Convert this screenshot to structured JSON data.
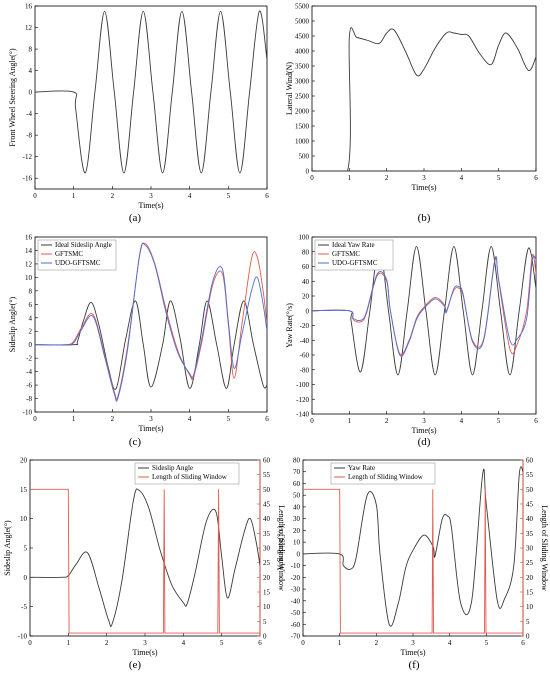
{
  "colors": {
    "black": "#3a3a3a",
    "red": "#e05a4e",
    "blue": "#4a6fd6",
    "axis_red": "#d24b3e"
  },
  "chart_data": [
    {
      "id": "a",
      "type": "line",
      "panel_label": "(a)",
      "xlabel": "Time(s)",
      "ylabel": "Front Wheel Steering Angle(°)",
      "xlim": [
        0,
        6
      ],
      "ylim": [
        -18,
        16
      ],
      "xticks": [
        0,
        1,
        2,
        3,
        4,
        5,
        6
      ],
      "yticks": [
        -16,
        -12,
        -8,
        -4,
        0,
        4,
        8,
        12,
        16
      ],
      "legend": [],
      "series": [
        {
          "color": "black",
          "x": [
            0,
            1,
            1.05,
            1.3,
            1.55,
            1.8,
            2.05,
            2.3,
            2.55,
            2.8,
            3.05,
            3.3,
            3.55,
            3.8,
            4.05,
            4.3,
            4.55,
            4.8,
            5.05,
            5.3,
            5.55,
            5.8,
            6.0
          ],
          "y": [
            0,
            0,
            -3,
            -15,
            0,
            15,
            0,
            -15,
            0,
            15,
            0,
            -15,
            0,
            15,
            0,
            -15,
            0,
            15,
            0,
            -15,
            0,
            15,
            6
          ]
        }
      ]
    },
    {
      "id": "b",
      "type": "line",
      "panel_label": "(b)",
      "xlabel": "Time(s)",
      "ylabel": "Lateral Wind(N)",
      "xlim": [
        0,
        6
      ],
      "ylim": [
        0,
        5500
      ],
      "xticks": [
        0,
        1,
        2,
        3,
        4,
        5,
        6
      ],
      "yticks": [
        0,
        500,
        1000,
        1500,
        2000,
        2500,
        3000,
        3500,
        4000,
        4500,
        5000,
        5500
      ],
      "legend": [],
      "series": [
        {
          "color": "black",
          "x": [
            0,
            0.95,
            1.0,
            1.2,
            1.5,
            1.8,
            2.0,
            2.2,
            2.5,
            2.8,
            3.0,
            3.3,
            3.6,
            3.8,
            4.0,
            4.2,
            4.5,
            4.8,
            5.0,
            5.2,
            5.5,
            5.8,
            6.0
          ],
          "y": [
            0,
            0,
            4450,
            4450,
            4350,
            4250,
            4600,
            4700,
            4000,
            3200,
            3400,
            4100,
            4600,
            4600,
            4550,
            4500,
            3900,
            3550,
            4200,
            4600,
            4100,
            3350,
            3800
          ]
        }
      ]
    },
    {
      "id": "c",
      "type": "line",
      "panel_label": "(c)",
      "xlabel": "Time(s)",
      "ylabel": "Sideslip Angle(°)",
      "xlim": [
        0,
        6
      ],
      "ylim": [
        -10,
        16
      ],
      "xticks": [
        0,
        1,
        2,
        3,
        4,
        5,
        6
      ],
      "yticks": [
        -10,
        -8,
        -6,
        -4,
        -2,
        0,
        2,
        4,
        6,
        8,
        10,
        12,
        14,
        16
      ],
      "legend": [
        "Ideal Sideslip Angle",
        "GFTSMC",
        "UDO-GFTSMC"
      ],
      "series": [
        {
          "name": "Ideal Sideslip Angle",
          "color": "black",
          "x": [
            0,
            1,
            1.1,
            1.25,
            1.45,
            1.65,
            1.9,
            2.1,
            2.35,
            2.6,
            2.8,
            3.0,
            3.3,
            3.5,
            3.75,
            4.0,
            4.25,
            4.45,
            4.7,
            4.95,
            5.15,
            5.4,
            5.65,
            5.9,
            6.0
          ],
          "y": [
            0,
            0,
            0.5,
            3.5,
            6.3,
            3,
            -3.5,
            -6.5,
            1,
            6.5,
            0,
            -6.3,
            0,
            6.5,
            1,
            -6.5,
            0,
            6.5,
            0,
            -6.5,
            0,
            6.5,
            0,
            -6,
            -6
          ]
        },
        {
          "name": "GFTSMC",
          "color": "red",
          "x": [
            0,
            0.8,
            1.0,
            1.2,
            1.5,
            1.8,
            2.05,
            2.15,
            2.4,
            2.7,
            2.85,
            3.1,
            3.4,
            3.7,
            4.0,
            4.1,
            4.3,
            4.6,
            4.85,
            5.0,
            5.15,
            5.35,
            5.6,
            5.75,
            5.9,
            6.0
          ],
          "y": [
            0,
            0,
            0.5,
            2.5,
            4.5,
            -1.5,
            -7,
            -7.5,
            0,
            13,
            15,
            12,
            5,
            -1,
            -4.5,
            -4.8,
            0,
            9,
            10.5,
            3,
            -5,
            3,
            12.8,
            13,
            8,
            3
          ]
        },
        {
          "name": "UDO-GFTSMC",
          "color": "blue",
          "x": [
            0,
            0.8,
            1.0,
            1.2,
            1.5,
            1.8,
            2.05,
            2.15,
            2.4,
            2.7,
            2.85,
            3.1,
            3.4,
            3.7,
            4.0,
            4.1,
            4.3,
            4.6,
            4.85,
            5.0,
            5.15,
            5.35,
            5.6,
            5.75,
            5.9,
            6.0
          ],
          "y": [
            0,
            0,
            0.3,
            2.2,
            4.2,
            -1.8,
            -7.3,
            -7.8,
            -0.5,
            13.2,
            14.8,
            11.8,
            4.5,
            -1.3,
            -4.3,
            -4.5,
            0.5,
            9.5,
            11.2,
            3.5,
            -3.5,
            1.5,
            8,
            10,
            6,
            2
          ]
        }
      ]
    },
    {
      "id": "d",
      "type": "line",
      "panel_label": "(d)",
      "xlabel": "Time(s)",
      "ylabel": "Yaw Rate(°/s)",
      "xlim": [
        0,
        6
      ],
      "ylim": [
        -140,
        100
      ],
      "xticks": [
        0,
        1,
        2,
        3,
        4,
        5,
        6
      ],
      "yticks": [
        -140,
        -120,
        -100,
        -80,
        -60,
        -40,
        -20,
        0,
        20,
        40,
        60,
        80,
        100
      ],
      "legend": [
        "Ideal Yaw Rate",
        "GFTSMC",
        "UDO-GFTSMC"
      ],
      "series": [
        {
          "name": "Ideal Yaw Rate",
          "color": "black",
          "x": [
            0,
            1,
            1.05,
            1.3,
            1.55,
            1.8,
            2.05,
            2.3,
            2.55,
            2.8,
            3.05,
            3.3,
            3.55,
            3.8,
            4.05,
            4.3,
            4.55,
            4.8,
            5.05,
            5.3,
            5.55,
            5.8,
            6.0
          ],
          "y": [
            0,
            0,
            -15,
            -83,
            0,
            87,
            0,
            -87,
            0,
            87,
            0,
            -87,
            0,
            87,
            0,
            -87,
            0,
            87,
            0,
            -87,
            0,
            85,
            30
          ]
        },
        {
          "name": "GFTSMC",
          "color": "red",
          "x": [
            0,
            1.0,
            1.1,
            1.3,
            1.45,
            1.75,
            2.0,
            2.1,
            2.35,
            2.6,
            2.8,
            3.0,
            3.3,
            3.55,
            3.6,
            3.8,
            3.95,
            4.05,
            4.3,
            4.6,
            4.9,
            5.0,
            5.3,
            5.5,
            5.75,
            5.9,
            6.0
          ],
          "y": [
            0,
            0,
            -12,
            -15,
            -5,
            48,
            40,
            0,
            -58,
            -40,
            -10,
            5,
            18,
            8,
            0,
            28,
            30,
            20,
            -40,
            -38,
            70,
            40,
            -52,
            -45,
            0,
            75,
            50
          ]
        },
        {
          "name": "UDO-GFTSMC",
          "color": "blue",
          "x": [
            0,
            1.0,
            1.1,
            1.3,
            1.45,
            1.75,
            2.0,
            2.1,
            2.35,
            2.6,
            2.8,
            3.0,
            3.3,
            3.55,
            3.6,
            3.8,
            3.95,
            4.05,
            4.3,
            4.6,
            4.9,
            5.0,
            5.3,
            5.5,
            5.75,
            5.9,
            6.0
          ],
          "y": [
            0,
            0,
            -10,
            -13,
            -3,
            50,
            42,
            0,
            -60,
            -42,
            -12,
            3,
            16,
            6,
            -2,
            30,
            32,
            22,
            -42,
            -40,
            68,
            42,
            -40,
            -38,
            -10,
            68,
            70
          ]
        }
      ]
    },
    {
      "id": "e",
      "type": "line",
      "panel_label": "(e)",
      "xlabel": "Time(s)",
      "ylabel": "Sideslip Angle(°)",
      "ylabel2": "Length of Sliding Window",
      "xlim": [
        0,
        6
      ],
      "ylim": [
        -10,
        20
      ],
      "ylim2": [
        0,
        60
      ],
      "xticks": [
        0,
        1,
        2,
        3,
        4,
        5,
        6
      ],
      "yticks": [
        -10,
        -5,
        0,
        5,
        10,
        15,
        20
      ],
      "yticks2": [
        0,
        5,
        10,
        15,
        20,
        25,
        30,
        35,
        40,
        45,
        50,
        55,
        60
      ],
      "legend": [
        "Sideslip Angle",
        "Length of Sliding Window"
      ],
      "series": [
        {
          "name": "Sideslip Angle",
          "color": "black",
          "axis": "left",
          "x": [
            0,
            0.8,
            1.0,
            1.2,
            1.5,
            1.8,
            2.05,
            2.15,
            2.4,
            2.7,
            2.85,
            3.1,
            3.4,
            3.7,
            4.0,
            4.1,
            4.3,
            4.6,
            4.85,
            5.0,
            5.15,
            5.35,
            5.6,
            5.75,
            5.9,
            6.0
          ],
          "y": [
            0,
            0,
            0.3,
            2.2,
            4.2,
            -1.8,
            -7.3,
            -7.8,
            -0.5,
            13.2,
            14.8,
            11.8,
            4.5,
            -1.3,
            -4.3,
            -4.5,
            0.5,
            9.5,
            11.2,
            3.5,
            -3.5,
            1.5,
            8,
            10,
            6,
            2
          ]
        },
        {
          "name": "Length of Sliding Window",
          "color": "red",
          "axis": "right",
          "step": true,
          "x": [
            0,
            1.0,
            1.02,
            3.48,
            3.5,
            3.52,
            4.9,
            4.92,
            4.94,
            6.0
          ],
          "y": [
            50,
            50,
            1,
            1,
            50,
            1,
            1,
            50,
            1,
            1
          ]
        }
      ]
    },
    {
      "id": "f",
      "type": "line",
      "panel_label": "(f)",
      "xlabel": "Time(s)",
      "ylabel": "Yaw Rate(°/s)",
      "ylabel2": "Length of Sliding Window",
      "xlim": [
        0,
        6
      ],
      "ylim": [
        -70,
        80
      ],
      "ylim2": [
        0,
        60
      ],
      "xticks": [
        0,
        1,
        2,
        3,
        4,
        5,
        6
      ],
      "yticks": [
        -70,
        -60,
        -50,
        -40,
        -30,
        -20,
        -10,
        0,
        10,
        20,
        30,
        40,
        50,
        60,
        70,
        80
      ],
      "yticks2": [
        0,
        5,
        10,
        15,
        20,
        25,
        30,
        35,
        40,
        45,
        50,
        55,
        60
      ],
      "legend": [
        "Yaw Rate",
        "Length of Sliding Window"
      ],
      "series": [
        {
          "name": "Yaw Rate",
          "color": "black",
          "axis": "left",
          "x": [
            0,
            1.0,
            1.1,
            1.3,
            1.45,
            1.75,
            2.0,
            2.1,
            2.35,
            2.6,
            2.8,
            3.0,
            3.3,
            3.55,
            3.6,
            3.8,
            3.95,
            4.05,
            4.3,
            4.6,
            4.9,
            5.0,
            5.3,
            5.5,
            5.75,
            5.9,
            6.0
          ],
          "y": [
            0,
            0,
            -10,
            -13,
            -3,
            50,
            42,
            0,
            -60,
            -42,
            -12,
            3,
            16,
            6,
            -2,
            30,
            32,
            22,
            -42,
            -40,
            68,
            42,
            -40,
            -38,
            -10,
            68,
            70
          ]
        },
        {
          "name": "Length of Sliding Window",
          "color": "red",
          "axis": "right",
          "step": true,
          "x": [
            0,
            1.0,
            1.02,
            3.52,
            3.54,
            3.56,
            4.95,
            4.97,
            4.99,
            6.0
          ],
          "y": [
            50,
            50,
            1,
            1,
            50,
            1,
            1,
            50,
            1,
            1
          ]
        }
      ]
    }
  ]
}
